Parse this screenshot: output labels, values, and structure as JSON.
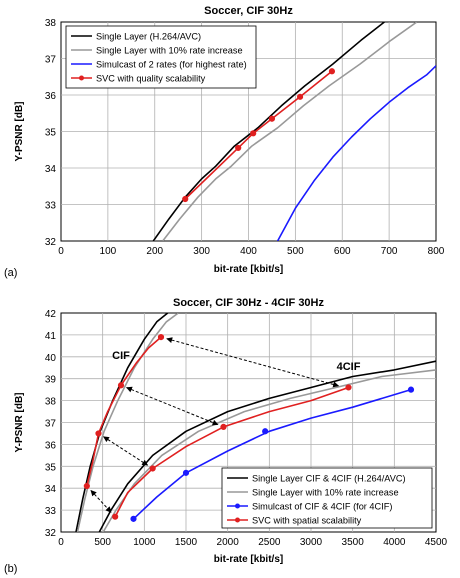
{
  "chart_data": [
    {
      "type": "line",
      "panel_label": "(a)",
      "title": "Soccer, CIF 30Hz",
      "xlabel": "bit-rate [kbit/s]",
      "ylabel": "Y-PSNR [dB]",
      "xlim": [
        0,
        800
      ],
      "ylim": [
        32,
        38
      ],
      "xticks": [
        0,
        100,
        200,
        300,
        400,
        500,
        600,
        700,
        800
      ],
      "yticks": [
        32,
        33,
        34,
        35,
        36,
        37,
        38
      ],
      "grid": true,
      "legend_position": "top-left",
      "series": [
        {
          "name": "Single Layer (H.264/AVC)",
          "color": "#000000",
          "marker": "none",
          "points": [
            [
              197,
              32.0
            ],
            [
              230,
              32.6
            ],
            [
              265,
              33.2
            ],
            [
              300,
              33.7
            ],
            [
              330,
              34.05
            ],
            [
              370,
              34.6
            ],
            [
              420,
              35.1
            ],
            [
              470,
              35.7
            ],
            [
              520,
              36.25
            ],
            [
              580,
              36.85
            ],
            [
              640,
              37.5
            ],
            [
              690,
              38.0
            ]
          ]
        },
        {
          "name": "Single Layer with 10% rate increase",
          "color": "#999999",
          "marker": "none",
          "points": [
            [
              217,
              32.0
            ],
            [
              253,
              32.6
            ],
            [
              292,
              33.2
            ],
            [
              330,
              33.7
            ],
            [
              363,
              34.05
            ],
            [
              407,
              34.6
            ],
            [
              462,
              35.1
            ],
            [
              517,
              35.7
            ],
            [
              572,
              36.25
            ],
            [
              638,
              36.85
            ],
            [
              704,
              37.5
            ],
            [
              759,
              38.0
            ]
          ]
        },
        {
          "name": "Simulcast of 2 rates (for highest rate)",
          "color": "#1a1aff",
          "marker": "none",
          "points": [
            [
              462,
              32.0
            ],
            [
              500,
              32.9
            ],
            [
              540,
              33.65
            ],
            [
              580,
              34.3
            ],
            [
              620,
              34.85
            ],
            [
              660,
              35.35
            ],
            [
              700,
              35.8
            ],
            [
              740,
              36.2
            ],
            [
              780,
              36.55
            ],
            [
              800,
              36.8
            ]
          ]
        },
        {
          "name": "SVC with quality scalability",
          "color": "#e02020",
          "marker": "circle",
          "points": [
            [
              265,
              33.15
            ],
            [
              378,
              34.55
            ],
            [
              410,
              34.95
            ],
            [
              450,
              35.35
            ],
            [
              510,
              35.95
            ],
            [
              578,
              36.65
            ]
          ]
        }
      ]
    },
    {
      "type": "line",
      "panel_label": "(b)",
      "title": "Soccer, CIF 30Hz - 4CIF 30Hz",
      "xlabel": "bit-rate [kbit/s]",
      "ylabel": "Y-PSNR [dB]",
      "xlim": [
        0,
        4500
      ],
      "ylim": [
        32,
        42
      ],
      "xticks": [
        0,
        500,
        1000,
        1500,
        2000,
        2500,
        3000,
        3500,
        4000,
        4500
      ],
      "yticks": [
        32,
        33,
        34,
        35,
        36,
        37,
        38,
        39,
        40,
        41,
        42
      ],
      "grid": true,
      "legend_position": "bottom-right",
      "annotations": [
        {
          "text": "CIF",
          "x": 720,
          "y": 39.9
        },
        {
          "text": "4CIF",
          "x": 3450,
          "y": 39.4
        }
      ],
      "arrows": [
        {
          "from": [
            1200,
            40.9
          ],
          "to": [
            3400,
            38.6
          ]
        },
        {
          "from": [
            720,
            38.7
          ],
          "to": [
            1950,
            36.8
          ]
        },
        {
          "from": [
            450,
            36.5
          ],
          "to": [
            1100,
            34.9
          ]
        },
        {
          "from": [
            310,
            34.1
          ],
          "to": [
            650,
            32.7
          ]
        }
      ],
      "series": [
        {
          "name": "Single Layer CIF & 4CIF (H.264/AVC)",
          "color": "#000000",
          "marker": "none",
          "points": [
            [
              180,
              32.0
            ],
            [
              260,
              33.5
            ],
            [
              350,
              35.0
            ],
            [
              470,
              36.6
            ],
            [
              620,
              38.0
            ],
            [
              800,
              39.5
            ],
            [
              1000,
              40.8
            ],
            [
              1150,
              41.6
            ],
            [
              1280,
              42.0
            ]
          ],
          "points_b": [
            [
              460,
              32.0
            ],
            [
              600,
              33.0
            ],
            [
              800,
              34.2
            ],
            [
              1100,
              35.5
            ],
            [
              1500,
              36.6
            ],
            [
              2000,
              37.5
            ],
            [
              2500,
              38.1
            ],
            [
              3000,
              38.6
            ],
            [
              3500,
              39.1
            ],
            [
              4000,
              39.4
            ],
            [
              4500,
              39.8
            ]
          ]
        },
        {
          "name": "Single Layer with 10% rate increase",
          "color": "#999999",
          "marker": "none",
          "points": [
            [
              198,
              32.0
            ],
            [
              286,
              33.5
            ],
            [
              385,
              35.0
            ],
            [
              517,
              36.6
            ],
            [
              682,
              38.0
            ],
            [
              880,
              39.5
            ],
            [
              1100,
              40.8
            ],
            [
              1265,
              41.6
            ],
            [
              1408,
              42.0
            ]
          ],
          "points_b": [
            [
              506,
              32.0
            ],
            [
              660,
              33.0
            ],
            [
              880,
              34.2
            ],
            [
              1210,
              35.5
            ],
            [
              1650,
              36.6
            ],
            [
              2200,
              37.5
            ],
            [
              2750,
              38.1
            ],
            [
              3300,
              38.6
            ],
            [
              3850,
              39.1
            ],
            [
              4500,
              39.4
            ]
          ]
        },
        {
          "name": "Simulcast of CIF & 4CIF (for 4CIF)",
          "color": "#1a1aff",
          "marker": "circle",
          "points": [
            [
              870,
              32.6
            ],
            [
              1150,
              33.6
            ],
            [
              1500,
              34.7
            ],
            [
              2000,
              35.7
            ],
            [
              2500,
              36.6
            ],
            [
              3000,
              37.2
            ],
            [
              3500,
              37.7
            ],
            [
              4200,
              38.5
            ]
          ],
          "marked_points": [
            [
              870,
              32.6
            ],
            [
              1500,
              34.7
            ],
            [
              2450,
              36.6
            ],
            [
              4200,
              38.5
            ]
          ]
        },
        {
          "name": "SVC with spatial scalability",
          "color": "#e02020",
          "marker": "circle",
          "points": [
            [
              310,
              34.1
            ],
            [
              380,
              35.2
            ],
            [
              450,
              36.5
            ],
            [
              560,
              37.5
            ],
            [
              720,
              38.7
            ],
            [
              900,
              39.7
            ],
            [
              1050,
              40.4
            ],
            [
              1200,
              40.9
            ]
          ],
          "points_b": [
            [
              650,
              32.7
            ],
            [
              800,
              33.8
            ],
            [
              1100,
              34.9
            ],
            [
              1500,
              35.9
            ],
            [
              1950,
              36.8
            ],
            [
              2500,
              37.5
            ],
            [
              3000,
              38.0
            ],
            [
              3450,
              38.6
            ]
          ],
          "marked_points": [
            [
              310,
              34.1
            ],
            [
              450,
              36.5
            ],
            [
              720,
              38.7
            ],
            [
              1200,
              40.9
            ],
            [
              650,
              32.7
            ],
            [
              1100,
              34.9
            ],
            [
              1950,
              36.8
            ],
            [
              3450,
              38.6
            ]
          ]
        }
      ]
    }
  ]
}
